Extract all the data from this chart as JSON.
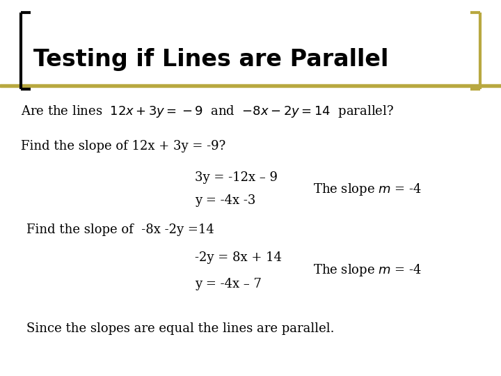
{
  "title": "Testing if Lines are Parallel",
  "title_fontsize": 24,
  "title_color": "#000000",
  "title_bg_color": "#b8a840",
  "background_color": "#ffffff",
  "bracket_color": "#000000",
  "bracket_right_color": "#b8a840",
  "body_fontsize": 13,
  "line1_pre": "Are the lines  ",
  "line1_math1": "$12x+3y=-9$",
  "line1_mid": "  and  ",
  "line1_math2": "$-8x-2y=14$",
  "line1_end": "  parallel?",
  "line2": "Find the slope of 12x + 3y = -9?",
  "line3": "3y = -12x – 9",
  "line4": "y = -4x -3",
  "slope1": "The slope $\\mathit{m}$ = -4",
  "line5": "Find the slope of  -8x -2y =14",
  "line6": "-2y = 8x + 14",
  "line7": "y = -4x – 7",
  "slope2": "The slope $\\mathit{m}$ = -4",
  "conclusion": "Since the slopes are equal the lines are parallel."
}
